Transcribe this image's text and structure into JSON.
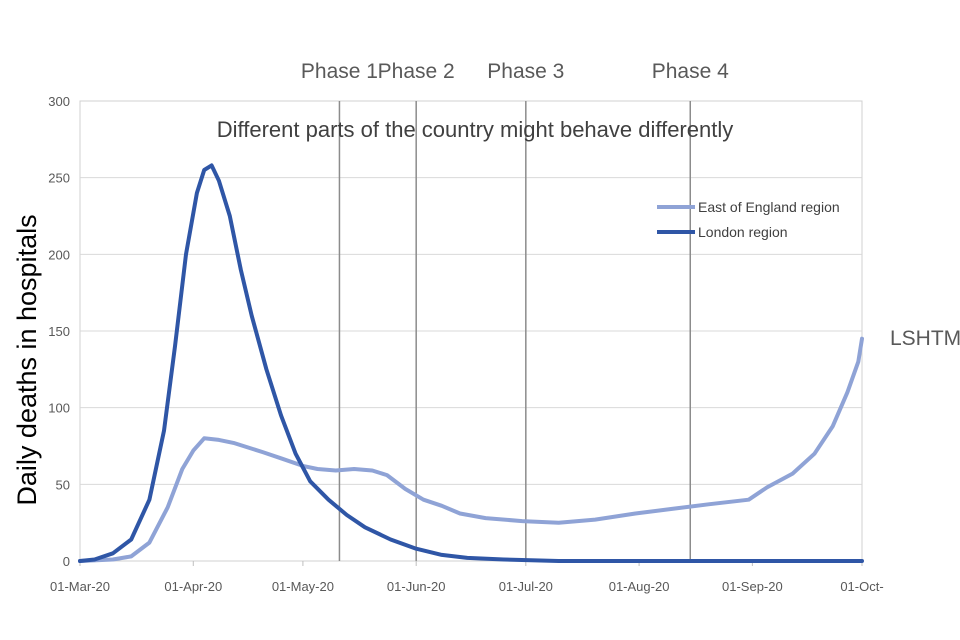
{
  "chart_data": {
    "type": "line",
    "title": "Different parts of the country might behave differently",
    "ylabel": "Daily deaths in hospitals",
    "xlabel": "",
    "ylim": [
      0,
      300
    ],
    "yticks": [
      0,
      50,
      100,
      150,
      200,
      250,
      300
    ],
    "xlim": [
      "2020-03-01",
      "2020-10-01"
    ],
    "xticks": [
      {
        "date": "2020-03-01",
        "label": "01-Mar-20"
      },
      {
        "date": "2020-04-01",
        "label": "01-Apr-20"
      },
      {
        "date": "2020-05-01",
        "label": "01-May-20"
      },
      {
        "date": "2020-06-01",
        "label": "01-Jun-20"
      },
      {
        "date": "2020-07-01",
        "label": "01-Jul-20"
      },
      {
        "date": "2020-08-01",
        "label": "01-Aug-20"
      },
      {
        "date": "2020-09-01",
        "label": "01-Sep-20"
      },
      {
        "date": "2020-10-01",
        "label": "01-Oct-"
      }
    ],
    "grid": "horizontal",
    "legend_position": "top-right",
    "phases": [
      {
        "label": "Phase 1",
        "date": "2020-05-11"
      },
      {
        "label": "Phase 2",
        "date": "2020-06-01"
      },
      {
        "label": "Phase 3",
        "date": "2020-07-01"
      },
      {
        "label": "Phase 4",
        "date": "2020-08-15"
      }
    ],
    "series": [
      {
        "name": "East of England region",
        "color": "#8fa3d6",
        "points": [
          [
            "2020-03-01",
            0
          ],
          [
            "2020-03-10",
            1
          ],
          [
            "2020-03-15",
            3
          ],
          [
            "2020-03-20",
            12
          ],
          [
            "2020-03-25",
            35
          ],
          [
            "2020-03-29",
            60
          ],
          [
            "2020-04-01",
            72
          ],
          [
            "2020-04-04",
            80
          ],
          [
            "2020-04-08",
            79
          ],
          [
            "2020-04-12",
            77
          ],
          [
            "2020-04-16",
            74
          ],
          [
            "2020-04-20",
            71
          ],
          [
            "2020-04-25",
            67
          ],
          [
            "2020-05-01",
            62
          ],
          [
            "2020-05-05",
            60
          ],
          [
            "2020-05-10",
            59
          ],
          [
            "2020-05-15",
            60
          ],
          [
            "2020-05-20",
            59
          ],
          [
            "2020-05-24",
            56
          ],
          [
            "2020-05-29",
            47
          ],
          [
            "2020-06-03",
            40
          ],
          [
            "2020-06-08",
            36
          ],
          [
            "2020-06-13",
            31
          ],
          [
            "2020-06-20",
            28
          ],
          [
            "2020-06-30",
            26
          ],
          [
            "2020-07-10",
            25
          ],
          [
            "2020-07-20",
            27
          ],
          [
            "2020-07-31",
            31
          ],
          [
            "2020-08-10",
            34
          ],
          [
            "2020-08-20",
            37
          ],
          [
            "2020-08-31",
            40
          ],
          [
            "2020-09-05",
            48
          ],
          [
            "2020-09-12",
            57
          ],
          [
            "2020-09-18",
            70
          ],
          [
            "2020-09-23",
            88
          ],
          [
            "2020-09-27",
            110
          ],
          [
            "2020-09-30",
            130
          ],
          [
            "2020-10-01",
            145
          ]
        ]
      },
      {
        "name": "London region",
        "color": "#2f56a6",
        "points": [
          [
            "2020-03-01",
            0
          ],
          [
            "2020-03-05",
            1
          ],
          [
            "2020-03-10",
            5
          ],
          [
            "2020-03-15",
            14
          ],
          [
            "2020-03-20",
            40
          ],
          [
            "2020-03-24",
            85
          ],
          [
            "2020-03-27",
            140
          ],
          [
            "2020-03-30",
            200
          ],
          [
            "2020-04-02",
            240
          ],
          [
            "2020-04-04",
            255
          ],
          [
            "2020-04-06",
            258
          ],
          [
            "2020-04-08",
            248
          ],
          [
            "2020-04-11",
            225
          ],
          [
            "2020-04-14",
            190
          ],
          [
            "2020-04-17",
            160
          ],
          [
            "2020-04-21",
            125
          ],
          [
            "2020-04-25",
            95
          ],
          [
            "2020-04-29",
            70
          ],
          [
            "2020-05-03",
            52
          ],
          [
            "2020-05-08",
            40
          ],
          [
            "2020-05-13",
            30
          ],
          [
            "2020-05-18",
            22
          ],
          [
            "2020-05-25",
            14
          ],
          [
            "2020-06-01",
            8
          ],
          [
            "2020-06-08",
            4
          ],
          [
            "2020-06-15",
            2
          ],
          [
            "2020-06-25",
            1
          ],
          [
            "2020-07-10",
            0
          ],
          [
            "2020-08-01",
            0
          ],
          [
            "2020-09-01",
            0
          ],
          [
            "2020-10-01",
            0
          ]
        ]
      }
    ]
  },
  "side_note": "LSHTM"
}
